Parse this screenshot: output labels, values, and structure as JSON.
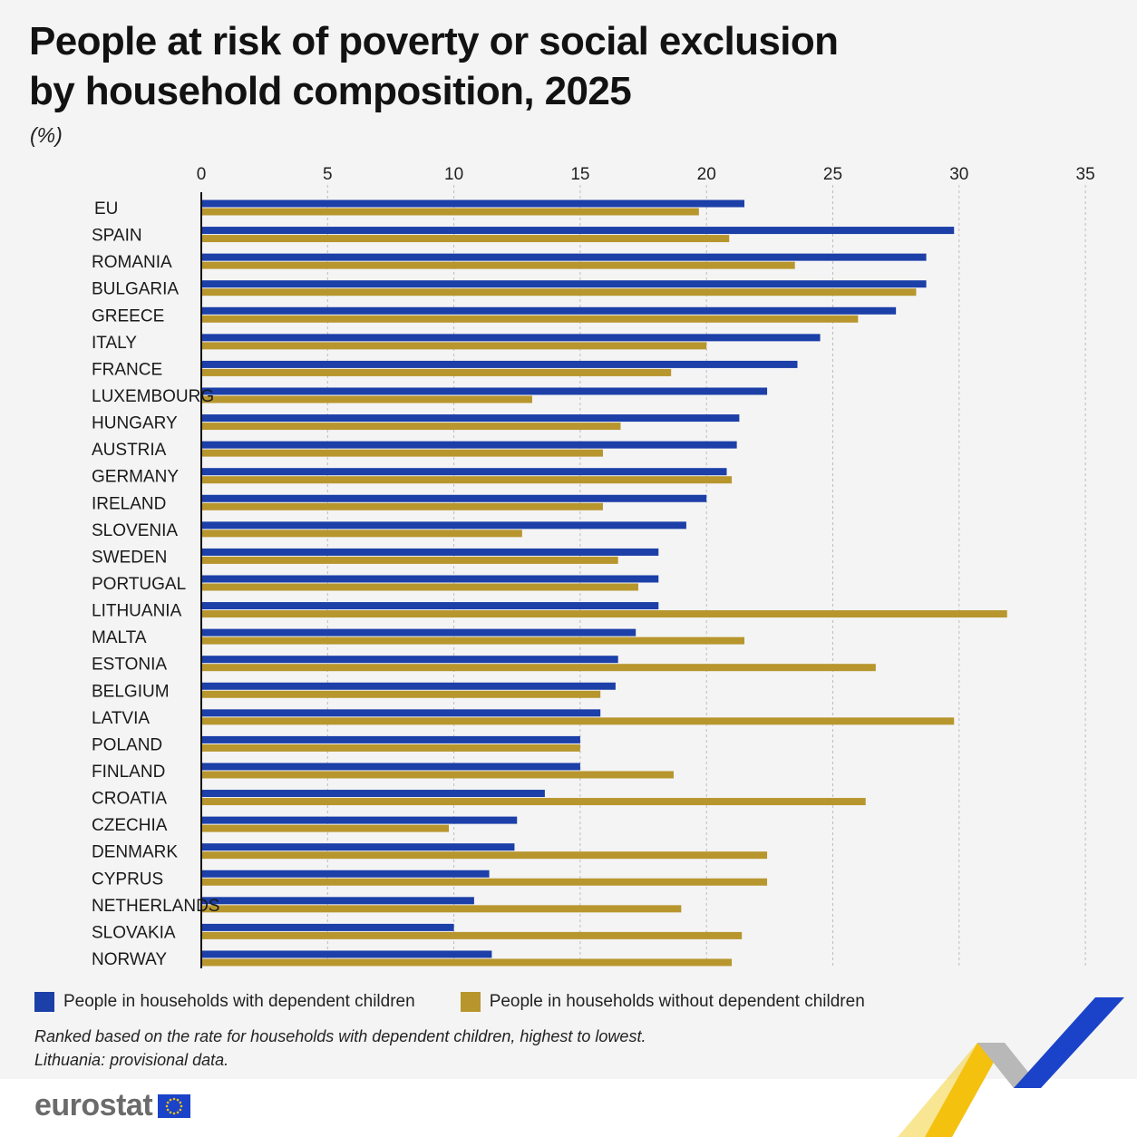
{
  "title_lines": [
    "People at risk of poverty or social exclusion",
    "by household composition, 2025"
  ],
  "unit": "(%)",
  "legend": {
    "with_children": "People in households with dependent children",
    "without_children": "People in households without dependent children"
  },
  "notes": [
    "Ranked based on the rate for households with dependent children, highest to lowest.",
    "Lithuania: provisional data."
  ],
  "brand": "eurostat",
  "colors": {
    "with_children": "#1c3fa8",
    "without_children": "#b8962e",
    "grid": "#bdbdbd",
    "axis": "#111111"
  },
  "chart_data": {
    "type": "bar",
    "orientation": "horizontal",
    "xlim": [
      0,
      35
    ],
    "ticks": [
      0,
      5,
      10,
      15,
      20,
      25,
      30,
      35
    ],
    "grid": "vertical-dashed",
    "legend_position": "bottom-left",
    "categories": [
      "EU",
      "SPAIN",
      "ROMANIA",
      "BULGARIA",
      "GREECE",
      "ITALY",
      "FRANCE",
      "LUXEMBOURG",
      "HUNGARY",
      "AUSTRIA",
      "GERMANY",
      "IRELAND",
      "SLOVENIA",
      "SWEDEN",
      "PORTUGAL",
      "LITHUANIA",
      "MALTA",
      "ESTONIA",
      "BELGIUM",
      "LATVIA",
      "POLAND",
      "FINLAND",
      "CROATIA",
      "CZECHIA",
      "DENMARK",
      "CYPRUS",
      "NETHERLANDS",
      "SLOVAKIA",
      "NORWAY"
    ],
    "series": [
      {
        "name": "People in households with dependent children",
        "values": [
          21.5,
          29.8,
          28.7,
          28.7,
          27.5,
          24.5,
          23.6,
          22.4,
          21.3,
          21.2,
          20.8,
          20.0,
          19.2,
          18.1,
          18.1,
          18.1,
          17.2,
          16.5,
          16.4,
          15.8,
          15.0,
          15.0,
          13.6,
          12.5,
          12.4,
          11.4,
          10.8,
          10.0,
          11.5
        ]
      },
      {
        "name": "People in households without dependent children",
        "values": [
          19.7,
          20.9,
          23.5,
          28.3,
          26.0,
          20.0,
          18.6,
          13.1,
          16.6,
          15.9,
          21.0,
          15.9,
          12.7,
          16.5,
          17.3,
          31.9,
          21.5,
          26.7,
          15.8,
          29.8,
          15.0,
          18.7,
          26.3,
          9.8,
          22.4,
          22.4,
          19.0,
          21.4,
          21.0
        ]
      }
    ]
  }
}
